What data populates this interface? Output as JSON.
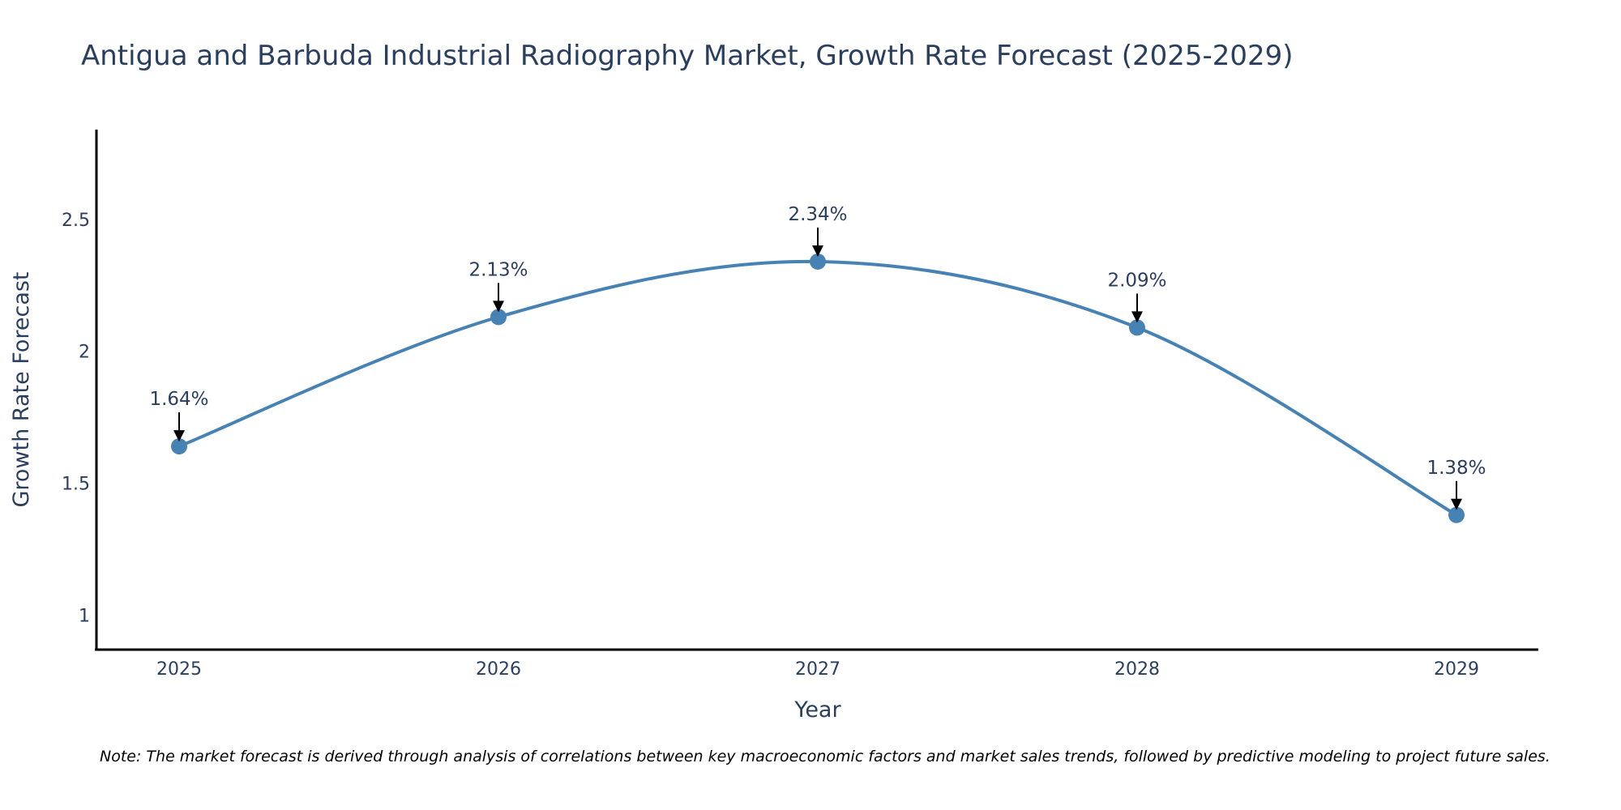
{
  "chart_data": {
    "type": "line",
    "title": "Antigua and Barbuda Industrial Radiography Market, Growth Rate Forecast (2025-2029)",
    "xlabel": "Year",
    "ylabel": "Growth Rate Forecast",
    "categories": [
      "2025",
      "2026",
      "2027",
      "2028",
      "2029"
    ],
    "values": [
      1.64,
      2.13,
      2.34,
      2.09,
      1.38
    ],
    "data_labels": [
      "1.64%",
      "2.13%",
      "2.34%",
      "2.09%",
      "1.38%"
    ],
    "yticks": [
      1,
      1.5,
      2,
      2.5
    ],
    "ytick_labels": [
      "1",
      "1.5",
      "2",
      "2.5"
    ],
    "ylim": [
      0.87,
      2.84
    ],
    "grid": false,
    "line_style": "smooth spline with markers",
    "series_color": "#4682b4",
    "marker_color": "#4682b4",
    "arrow_color": "#000000",
    "note": "Note: The market forecast is derived through analysis of correlations between key macroeconomic factors and market sales trends, followed by predictive modeling to project future sales."
  }
}
